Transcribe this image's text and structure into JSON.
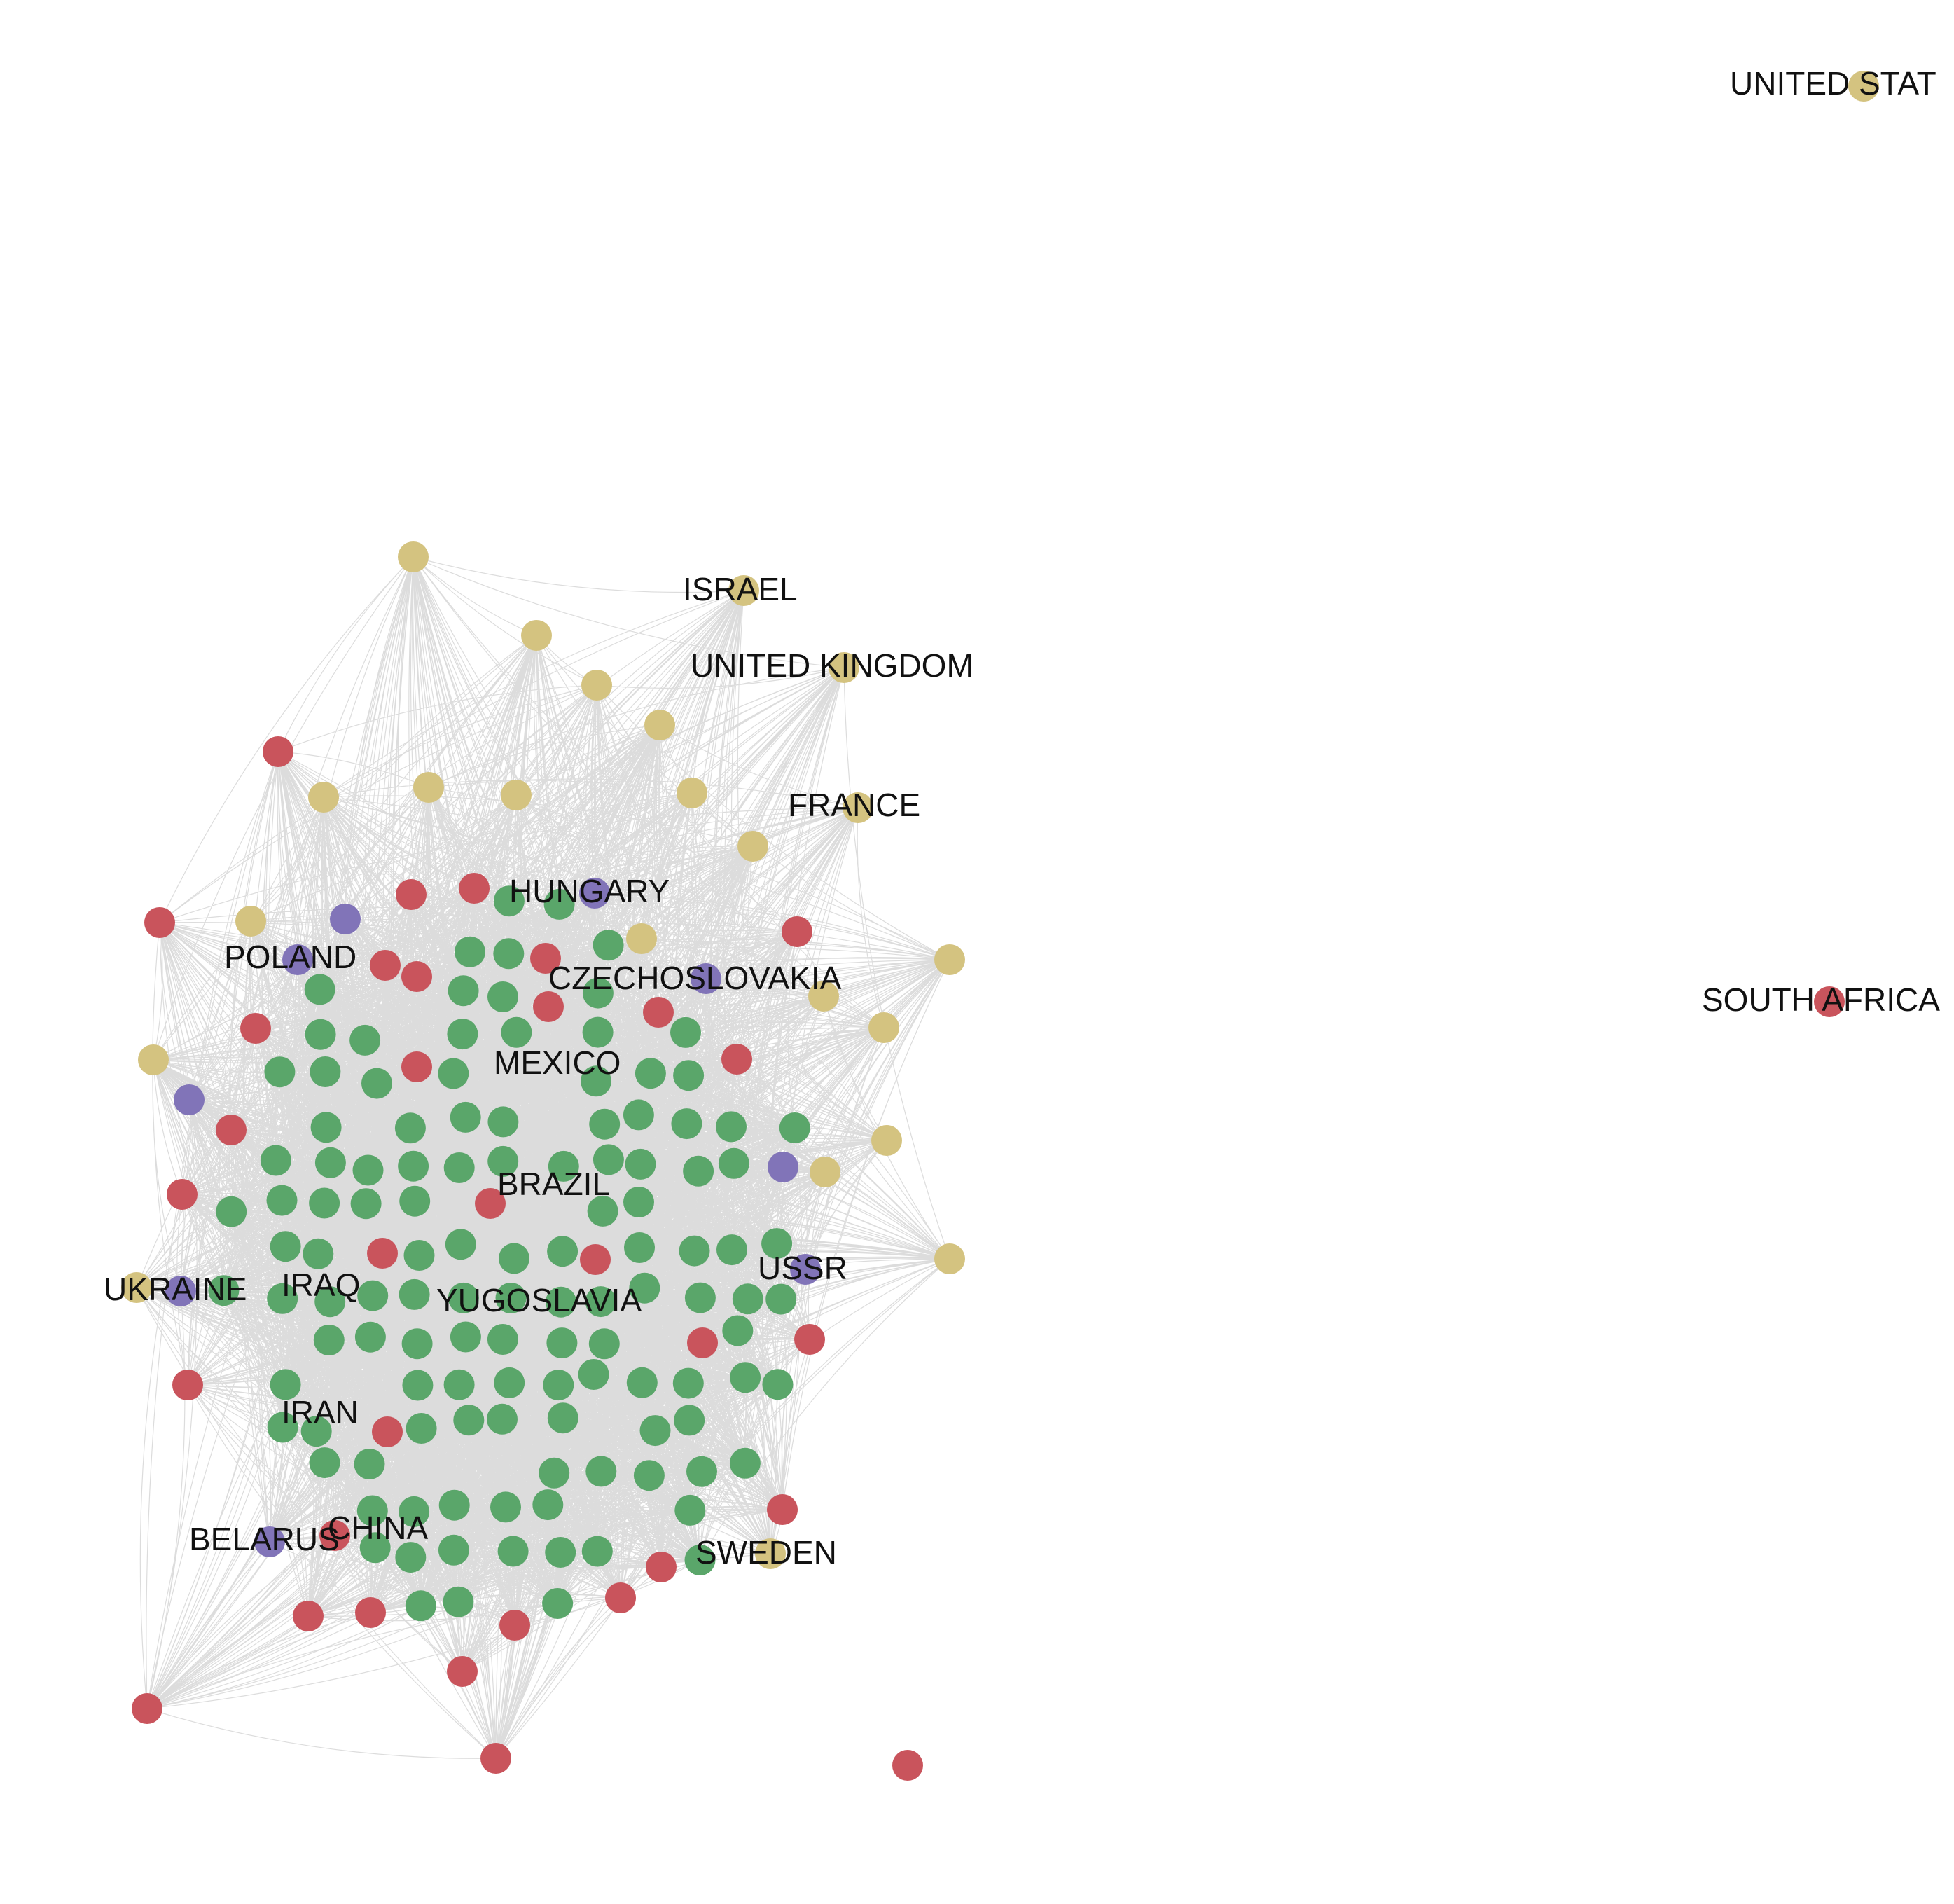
{
  "colors": {
    "sand": "#d4c380",
    "red": "#c9545c",
    "green": "#5aa66a",
    "purple": "#8174b8",
    "edge": "#808080"
  },
  "labels": {
    "united_states": "UNITED STAT",
    "israel": "ISRAEL",
    "united_kingdom": "UNITED KINGDOM",
    "france": "FRANCE",
    "hungary": "HUNGARY",
    "poland": "POLAND",
    "czechoslovakia": "CZECHOSLOVAKIA",
    "south_africa": "SOUTH AFRICA",
    "mexico": "MEXICO",
    "brazil": "BRAZIL",
    "ukraine": "UKRAINE",
    "iraq": "IRAQ",
    "ussr": "USSR",
    "yugoslavia": "YUGOSLAVIA",
    "iran": "IRAN",
    "china": "CHINA",
    "belarus": "BELARUS",
    "sweden": "SWEDEN"
  }
}
